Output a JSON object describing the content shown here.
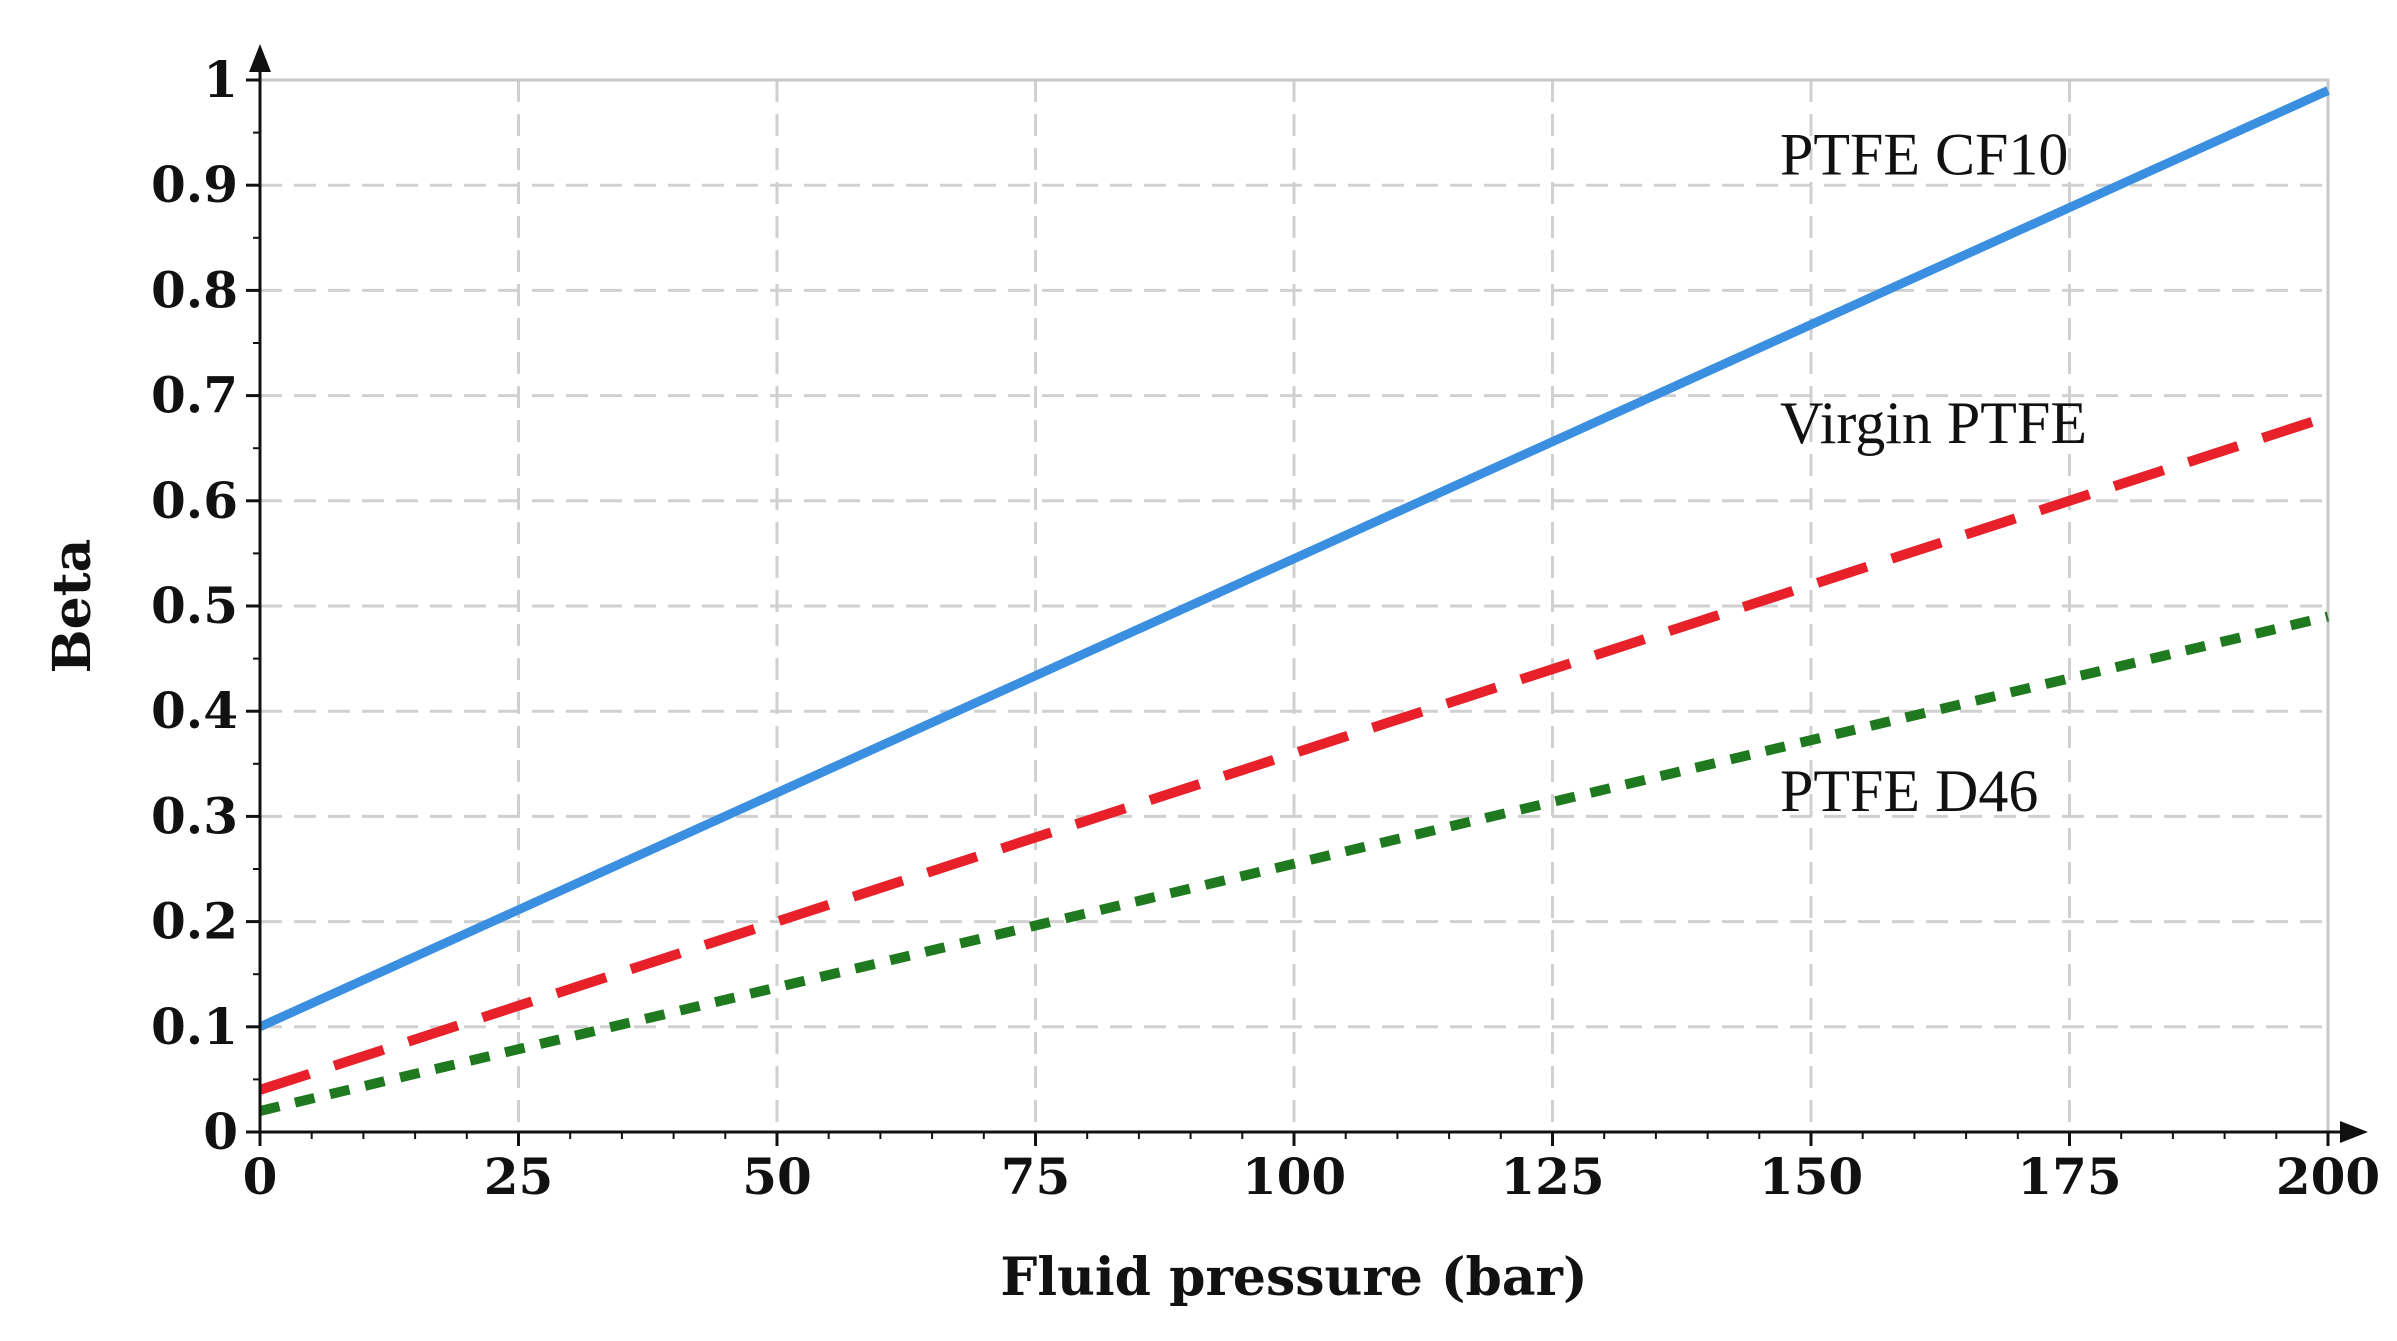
{
  "chart_data": {
    "type": "line",
    "title": "",
    "xlabel": "Fluid pressure (bar)",
    "ylabel": "Beta",
    "xlim": [
      0,
      200
    ],
    "ylim": [
      0,
      1
    ],
    "xticks": [
      0,
      25,
      50,
      75,
      100,
      125,
      150,
      175,
      200
    ],
    "yticks": [
      0,
      0.1,
      0.2,
      0.3,
      0.4,
      0.5,
      0.6,
      0.7,
      0.8,
      0.9,
      1
    ],
    "ytick_labels": [
      "0",
      "0.1",
      "0.2",
      "0.3",
      "0.4",
      "0.5",
      "0.6",
      "0.7",
      "0.8",
      "0.9",
      "1"
    ],
    "grid": true,
    "series": [
      {
        "name": "PTFE CF10",
        "x": [
          0,
          200
        ],
        "values": [
          0.1,
          0.99
        ],
        "color": "#3a8fe0",
        "style": "solid"
      },
      {
        "name": "Virgin PTFE",
        "x": [
          0,
          200
        ],
        "values": [
          0.04,
          0.68
        ],
        "color": "#e8202a",
        "style": "dashed"
      },
      {
        "name": "PTFE D46",
        "x": [
          0,
          200
        ],
        "values": [
          0.02,
          0.49
        ],
        "color": "#1f7a1f",
        "style": "dotted"
      }
    ],
    "annotations": [
      {
        "text": "PTFE CF10",
        "x": 147,
        "y": 0.91
      },
      {
        "text": "Virgin PTFE",
        "x": 147,
        "y": 0.655
      },
      {
        "text": "PTFE D46",
        "x": 147,
        "y": 0.305
      }
    ]
  }
}
